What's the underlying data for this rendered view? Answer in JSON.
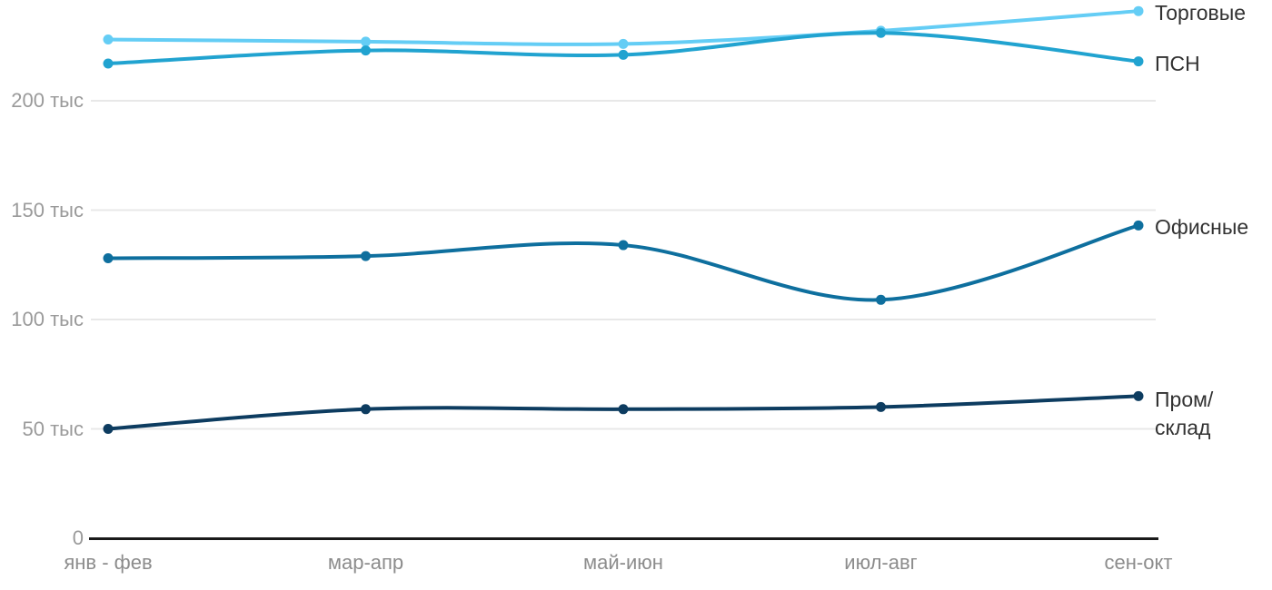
{
  "chart_data": {
    "type": "line",
    "title": "",
    "categories": [
      "янв - фев",
      "мар-апр",
      "май-июн",
      "июл-авг",
      "сен-окт"
    ],
    "y_ticks": [
      {
        "value": 0,
        "label": "0"
      },
      {
        "value": 50,
        "label": "50 тыс"
      },
      {
        "value": 100,
        "label": "100 тыс"
      },
      {
        "value": 150,
        "label": "150 тыс"
      },
      {
        "value": 200,
        "label": "200 тыс"
      }
    ],
    "ylim": [
      0,
      246
    ],
    "grid": true,
    "legend_position": "right-of-last-point",
    "series": [
      {
        "id": "torgovye",
        "name": "Торговые",
        "color": "#64cdf5",
        "values": [
          228,
          227,
          226,
          232,
          241
        ],
        "label_lines": [
          "Торговые"
        ]
      },
      {
        "id": "psn",
        "name": "ПСН",
        "color": "#21a3d0",
        "values": [
          217,
          223,
          221,
          231,
          218
        ],
        "label_lines": [
          "ПСН"
        ]
      },
      {
        "id": "ofisnye",
        "name": "Офисные",
        "color": "#0e6f9e",
        "values": [
          128,
          129,
          134,
          109,
          143
        ],
        "label_lines": [
          "Офисные"
        ]
      },
      {
        "id": "prom-sklad",
        "name": "Пром/склад",
        "color": "#0d3c60",
        "values": [
          50,
          59,
          59,
          60,
          65
        ],
        "label_lines": [
          "Пром/",
          "склад"
        ]
      }
    ],
    "colors": {
      "background": "#ffffff",
      "grid": "#e8e8e8",
      "axis": "#1a1a1a",
      "y_label_text": "#9a9a9a",
      "x_label_text": "#8c8c8c",
      "legend_text": "#323232"
    }
  }
}
